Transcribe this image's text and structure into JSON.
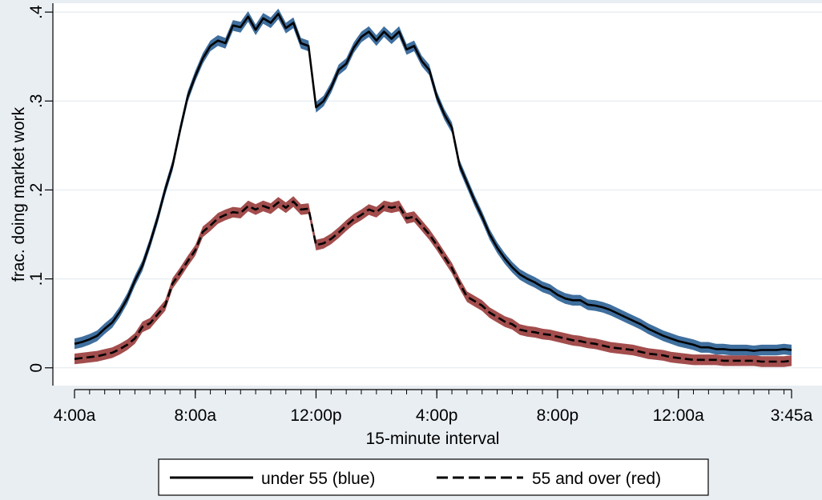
{
  "chart_data": {
    "type": "line",
    "title": "",
    "xlabel": "15-minute interval",
    "ylabel": "frac. doing market work",
    "ylim": [
      -0.02,
      0.41
    ],
    "xlim": [
      0,
      96
    ],
    "grid": true,
    "legend_position": "bottom",
    "x_ticks": [
      {
        "x": 0,
        "label": "4:00a"
      },
      {
        "x": 16,
        "label": "8:00a"
      },
      {
        "x": 32,
        "label": "12:00p"
      },
      {
        "x": 48,
        "label": "4:00p"
      },
      {
        "x": 64,
        "label": "8:00p"
      },
      {
        "x": 80,
        "label": "12:00a"
      },
      {
        "x": 95,
        "label": "3:45a"
      }
    ],
    "y_ticks": [
      {
        "y": 0,
        "label": "0"
      },
      {
        "y": 0.1,
        "label": ".1"
      },
      {
        "y": 0.2,
        "label": ".2"
      },
      {
        "y": 0.3,
        "label": ".3"
      },
      {
        "y": 0.4,
        "label": ".4"
      }
    ],
    "series": [
      {
        "name": "under 55 (blue)",
        "line_style": "solid",
        "band_color": "#3f6f9e",
        "ci_halfwidth": 0.006,
        "values": [
          0.027,
          0.029,
          0.032,
          0.036,
          0.044,
          0.051,
          0.063,
          0.078,
          0.098,
          0.115,
          0.14,
          0.168,
          0.2,
          0.228,
          0.268,
          0.305,
          0.328,
          0.348,
          0.362,
          0.368,
          0.365,
          0.385,
          0.383,
          0.395,
          0.38,
          0.393,
          0.388,
          0.398,
          0.382,
          0.388,
          0.365,
          0.362,
          0.293,
          0.3,
          0.315,
          0.335,
          0.342,
          0.36,
          0.372,
          0.378,
          0.368,
          0.378,
          0.37,
          0.378,
          0.358,
          0.362,
          0.345,
          0.335,
          0.305,
          0.285,
          0.27,
          0.228,
          0.208,
          0.188,
          0.17,
          0.15,
          0.135,
          0.123,
          0.113,
          0.105,
          0.1,
          0.096,
          0.091,
          0.088,
          0.082,
          0.078,
          0.076,
          0.076,
          0.071,
          0.07,
          0.068,
          0.065,
          0.061,
          0.057,
          0.053,
          0.049,
          0.044,
          0.04,
          0.036,
          0.033,
          0.03,
          0.028,
          0.026,
          0.023,
          0.023,
          0.021,
          0.021,
          0.02,
          0.02,
          0.02,
          0.019,
          0.02,
          0.02,
          0.02,
          0.021,
          0.02
        ]
      },
      {
        "name": "55 and over (red)",
        "line_style": "dashed",
        "band_color": "#a34d4d",
        "ci_halfwidth": 0.006,
        "values": [
          0.01,
          0.011,
          0.012,
          0.013,
          0.015,
          0.017,
          0.021,
          0.026,
          0.033,
          0.046,
          0.05,
          0.06,
          0.07,
          0.095,
          0.107,
          0.12,
          0.132,
          0.153,
          0.16,
          0.168,
          0.172,
          0.175,
          0.174,
          0.182,
          0.178,
          0.182,
          0.179,
          0.186,
          0.18,
          0.187,
          0.178,
          0.179,
          0.138,
          0.14,
          0.145,
          0.152,
          0.16,
          0.167,
          0.172,
          0.178,
          0.175,
          0.182,
          0.18,
          0.182,
          0.168,
          0.17,
          0.16,
          0.15,
          0.138,
          0.125,
          0.112,
          0.095,
          0.08,
          0.075,
          0.07,
          0.062,
          0.057,
          0.052,
          0.049,
          0.043,
          0.041,
          0.04,
          0.038,
          0.037,
          0.035,
          0.033,
          0.031,
          0.03,
          0.028,
          0.027,
          0.025,
          0.023,
          0.022,
          0.021,
          0.02,
          0.018,
          0.016,
          0.015,
          0.014,
          0.012,
          0.011,
          0.01,
          0.009,
          0.009,
          0.009,
          0.009,
          0.008,
          0.008,
          0.008,
          0.008,
          0.008,
          0.007,
          0.007,
          0.007,
          0.007,
          0.008
        ]
      }
    ]
  }
}
